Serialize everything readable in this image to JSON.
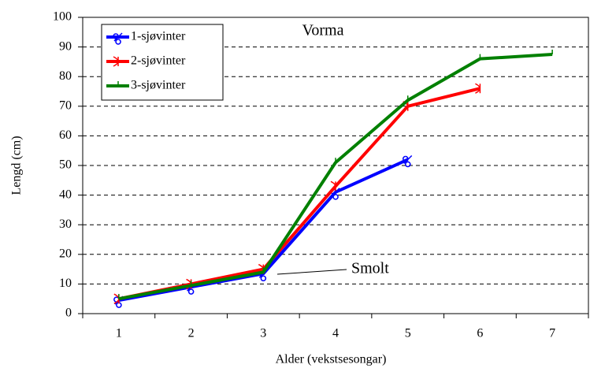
{
  "chart_data": {
    "type": "line",
    "title": "Vorma",
    "xlabel": "Alder (vekstsesongar)",
    "ylabel": "Lengd (cm)",
    "annotation": "Smolt",
    "x": [
      1,
      2,
      3,
      4,
      5,
      6,
      7
    ],
    "series": [
      {
        "name": "1-sjøvinter",
        "color": "#0000ff",
        "values": [
          4.5,
          9,
          13.5,
          41,
          52,
          null,
          null
        ]
      },
      {
        "name": "2-sjøvinter",
        "color": "#ff0000",
        "values": [
          5,
          10,
          15,
          43,
          70,
          76,
          null
        ]
      },
      {
        "name": "3-sjøvinter",
        "color": "#008000",
        "values": [
          5,
          9.5,
          14,
          51,
          72,
          86,
          87.5
        ]
      }
    ],
    "xlim": [
      0.5,
      7.5
    ],
    "xticks": [
      1,
      2,
      3,
      4,
      5,
      6,
      7
    ],
    "ylim": [
      0,
      100
    ],
    "yticks": [
      0,
      10,
      20,
      30,
      40,
      50,
      60,
      70,
      80,
      90,
      100
    ],
    "grid": true,
    "legend": "upper left"
  }
}
